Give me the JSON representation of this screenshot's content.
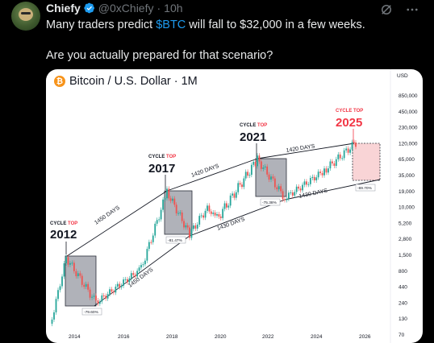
{
  "post": {
    "author_name": "Chiefy",
    "handle": "@0xChiefy",
    "separator": "·",
    "time": "10h",
    "line1_before": "Many traders predict ",
    "line1_cashtag": "$BTC",
    "line1_after": " will fall to $32,000 in a few weeks.",
    "line2": "Are you actually prepared for that scenario?",
    "icons": [
      "verified-badge-icon",
      "grok-icon",
      "more-icon"
    ]
  },
  "chart": {
    "title": "Bitcoin / U.S. Dollar · 1M",
    "logo": "₿",
    "currency": "USD",
    "colors": {
      "up": "#26a69a",
      "down": "#ef5350",
      "cycle_red": "#f23645",
      "box_gray": "#9598a1",
      "box_red": "#f7c5c8"
    }
  },
  "chart_data": {
    "type": "candlestick",
    "title": "Bitcoin / U.S. Dollar · 1M",
    "y_scale": "log",
    "y_ticks": [
      "850,000",
      "450,000",
      "230,000",
      "120,000",
      "65,000",
      "35,000",
      "19,000",
      "10,000",
      "5,200",
      "2,800",
      "1,500",
      "800",
      "440",
      "240",
      "130",
      "70"
    ],
    "x_ticks": [
      "2014",
      "2016",
      "2018",
      "2020",
      "2022",
      "2024",
      "2026"
    ],
    "cycles": [
      {
        "label_top": "CYCLE TOP",
        "year": "2012",
        "pct": "-79.60%"
      },
      {
        "label_top": "CYCLE TOP",
        "year": "2017",
        "pct": "-81.47%"
      },
      {
        "label_top": "CYCLE TOP",
        "year": "2021",
        "pct": "-75.38%"
      },
      {
        "label_top": "CYCLE TOP",
        "year": "2025",
        "pct": "-69.70%"
      }
    ],
    "annotations_upper": [
      "1450 DAYS",
      "1420 DAYS",
      "1420 DAYS"
    ],
    "annotations_lower": [
      "1450 DAYS",
      "1430 DAYS",
      "1430 DAYS"
    ]
  }
}
